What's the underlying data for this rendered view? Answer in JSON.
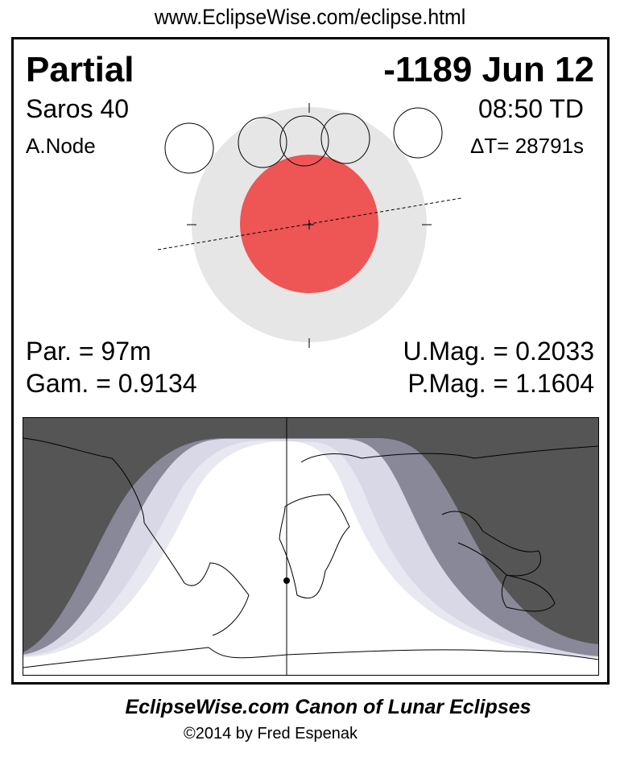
{
  "header": {
    "url": "www.EclipseWise.com/eclipse.html"
  },
  "eclipse": {
    "type": "Partial",
    "date": "-1189 Jun 12",
    "saros": "Saros  40",
    "time": "08:50 TD",
    "node": "A.Node",
    "delta_t": "ΔT=  28791s",
    "partial_duration": "Par. =  97m",
    "umbral_magnitude": "U.Mag. = 0.2033",
    "gamma": "Gam. = 0.9134",
    "penumbral_magnitude": "P.Mag. = 1.1604"
  },
  "colors": {
    "umbra": "#ee5555",
    "penumbra": "#e6e6e6",
    "night": "#555555",
    "band1": "#888898",
    "band2": "#d8d8e6",
    "band3": "#e8e8f2"
  },
  "footer": {
    "title": "EclipseWise.com Canon of Lunar Eclipses",
    "copyright": "©2014 by Fred Espenak"
  }
}
